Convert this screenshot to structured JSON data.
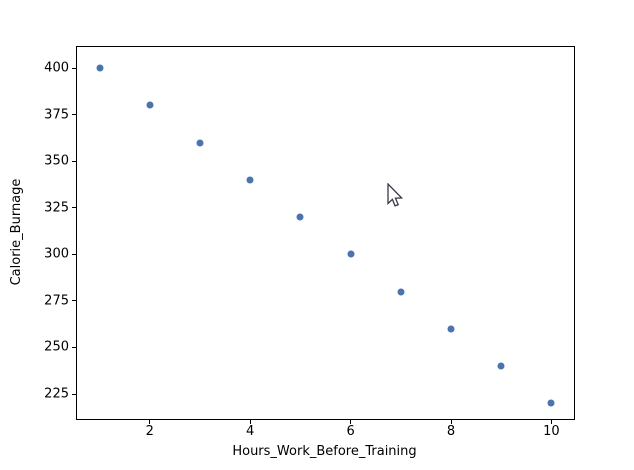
{
  "chart_data": {
    "type": "scatter",
    "title": "",
    "xlabel": "Hours_Work_Before_Training",
    "ylabel": "Calorie_Burnage",
    "x": [
      1,
      2,
      3,
      4,
      5,
      6,
      7,
      8,
      9,
      10
    ],
    "y": [
      400,
      380,
      360,
      340,
      320,
      300,
      280,
      260,
      240,
      220
    ],
    "x_ticks": [
      2,
      4,
      6,
      8,
      10
    ],
    "y_ticks": [
      225,
      250,
      275,
      300,
      325,
      350,
      375,
      400
    ],
    "xlim": [
      0.55,
      10.45
    ],
    "ylim": [
      211.6,
      411.3
    ],
    "grid": false,
    "legend": "none",
    "marker_color": "#4C72B0",
    "spine_color": "#000000",
    "background_color": "#ffffff"
  },
  "cursor": {
    "type": "arrow-pointer"
  }
}
